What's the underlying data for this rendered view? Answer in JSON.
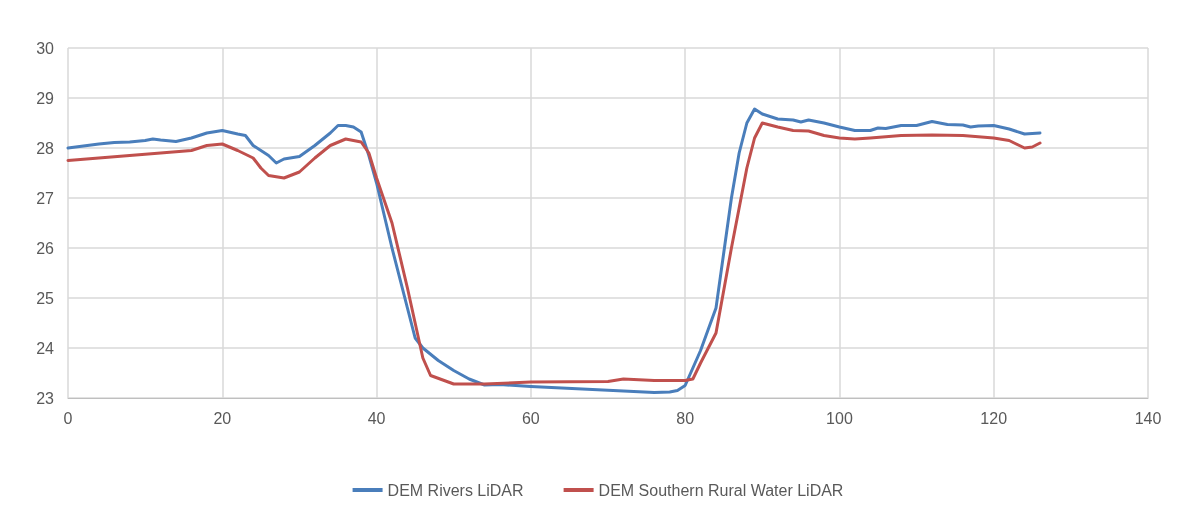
{
  "chart_data": {
    "type": "line",
    "xlim": [
      0,
      140
    ],
    "xticks": [
      0,
      20,
      40,
      60,
      80,
      100,
      120,
      140
    ],
    "ylim": [
      23,
      30
    ],
    "yticks": [
      23,
      24,
      25,
      26,
      27,
      28,
      29,
      30
    ],
    "grid": true,
    "legend": "bottom",
    "marker": "none",
    "line_style": "solid",
    "series": [
      {
        "name": "DEM Rivers LiDAR",
        "color": "#4a7ebb",
        "x": [
          0,
          2,
          4,
          6,
          8,
          10,
          11,
          12,
          14,
          16,
          18,
          20,
          22,
          23,
          24,
          26,
          27,
          28,
          30,
          32,
          34,
          35,
          36,
          37,
          38,
          39,
          40,
          42,
          44,
          45,
          46,
          48,
          50,
          52,
          54,
          56,
          60,
          64,
          68,
          72,
          76,
          78,
          79,
          80,
          82,
          84,
          86,
          87,
          88,
          89,
          90,
          92,
          94,
          95,
          96,
          98,
          100,
          102,
          104,
          105,
          106,
          108,
          110,
          112,
          114,
          116,
          117,
          118,
          120,
          122,
          124,
          126
        ],
        "values": [
          28.0,
          28.04,
          28.08,
          28.11,
          28.12,
          28.15,
          28.18,
          28.16,
          28.13,
          28.2,
          28.3,
          28.35,
          28.28,
          28.25,
          28.05,
          27.85,
          27.7,
          27.78,
          27.83,
          28.05,
          28.3,
          28.45,
          28.45,
          28.42,
          28.32,
          27.85,
          27.3,
          26.0,
          24.8,
          24.2,
          24.0,
          23.75,
          23.55,
          23.38,
          23.26,
          23.27,
          23.23,
          23.2,
          23.17,
          23.14,
          23.11,
          23.12,
          23.15,
          23.25,
          23.95,
          24.8,
          27.0,
          27.9,
          28.5,
          28.78,
          28.68,
          28.58,
          28.56,
          28.52,
          28.56,
          28.5,
          28.42,
          28.35,
          28.35,
          28.4,
          28.39,
          28.45,
          28.45,
          28.53,
          28.47,
          28.46,
          28.42,
          28.44,
          28.45,
          28.38,
          28.28,
          28.3
        ]
      },
      {
        "name": "DEM Southern Rural Water LiDAR",
        "color": "#c0504d",
        "x": [
          0,
          4,
          8,
          12,
          16,
          18,
          20,
          22,
          24,
          25,
          26,
          28,
          30,
          32,
          34,
          36,
          38,
          39,
          40,
          42,
          44,
          46,
          47,
          50,
          52,
          54,
          60,
          70,
          72,
          76,
          80,
          81,
          82,
          84,
          86,
          88,
          89,
          90,
          92,
          94,
          96,
          98,
          100,
          102,
          104,
          108,
          112,
          116,
          120,
          122,
          124,
          125,
          126
        ],
        "values": [
          27.75,
          27.8,
          27.85,
          27.9,
          27.95,
          28.05,
          28.08,
          27.95,
          27.8,
          27.6,
          27.45,
          27.4,
          27.52,
          27.8,
          28.05,
          28.18,
          28.12,
          27.9,
          27.4,
          26.5,
          25.2,
          23.8,
          23.45,
          23.28,
          23.28,
          23.28,
          23.32,
          23.33,
          23.38,
          23.35,
          23.35,
          23.38,
          23.7,
          24.3,
          26.0,
          27.6,
          28.2,
          28.5,
          28.42,
          28.35,
          28.34,
          28.25,
          28.2,
          28.18,
          28.2,
          28.25,
          28.26,
          28.25,
          28.2,
          28.15,
          28.0,
          28.02,
          28.1
        ]
      }
    ]
  }
}
